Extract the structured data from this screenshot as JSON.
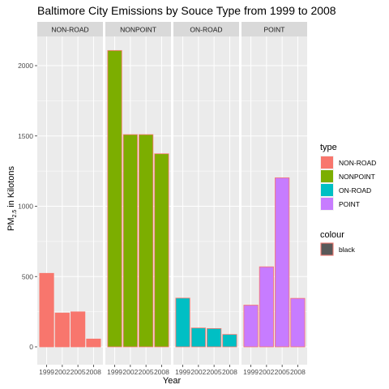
{
  "chart_data": {
    "type": "bar",
    "title": "Baltimore City Emissions by Souce Type from 1999 to 2008",
    "xlabel": "Year",
    "ylabel_main": "PM",
    "ylabel_sub": "2.5",
    "ylabel_rest": " in Kilotons",
    "ylim": [
      0,
      2200
    ],
    "y_ticks": [
      0,
      500,
      1000,
      1500,
      2000
    ],
    "y_tick_labels": [
      "0",
      "500",
      "1000",
      "1500",
      "2000"
    ],
    "categories": [
      "1999",
      "2002",
      "2005",
      "2008"
    ],
    "grid": true,
    "bar_outline_color": "#F8766D",
    "panel_background": "#EBEBEB",
    "strip_background": "#D9D9D9",
    "facets": [
      {
        "name": "NON-ROAD",
        "color": "#F8766D",
        "values": [
          522.9,
          240.8,
          248.9,
          55.8
        ]
      },
      {
        "name": "NONPOINT",
        "color": "#7CAE00",
        "values": [
          2107.6,
          1509.5,
          1509.5,
          1373.2
        ]
      },
      {
        "name": "ON-ROAD",
        "color": "#00BFC4",
        "values": [
          346.8,
          134.3,
          130.4,
          88.3
        ]
      },
      {
        "name": "POINT",
        "color": "#C77CFF",
        "values": [
          296.8,
          569.3,
          1202.5,
          344.98
        ]
      }
    ],
    "legend": {
      "position": "right",
      "type_title": "type",
      "type_entries": [
        {
          "label": "NON-ROAD",
          "color": "#F8766D"
        },
        {
          "label": "NONPOINT",
          "color": "#7CAE00"
        },
        {
          "label": "ON-ROAD",
          "color": "#00BFC4"
        },
        {
          "label": "POINT",
          "color": "#C77CFF"
        }
      ],
      "colour_title": "colour",
      "colour_entries": [
        {
          "label": "black",
          "color": "#595959"
        }
      ]
    }
  }
}
